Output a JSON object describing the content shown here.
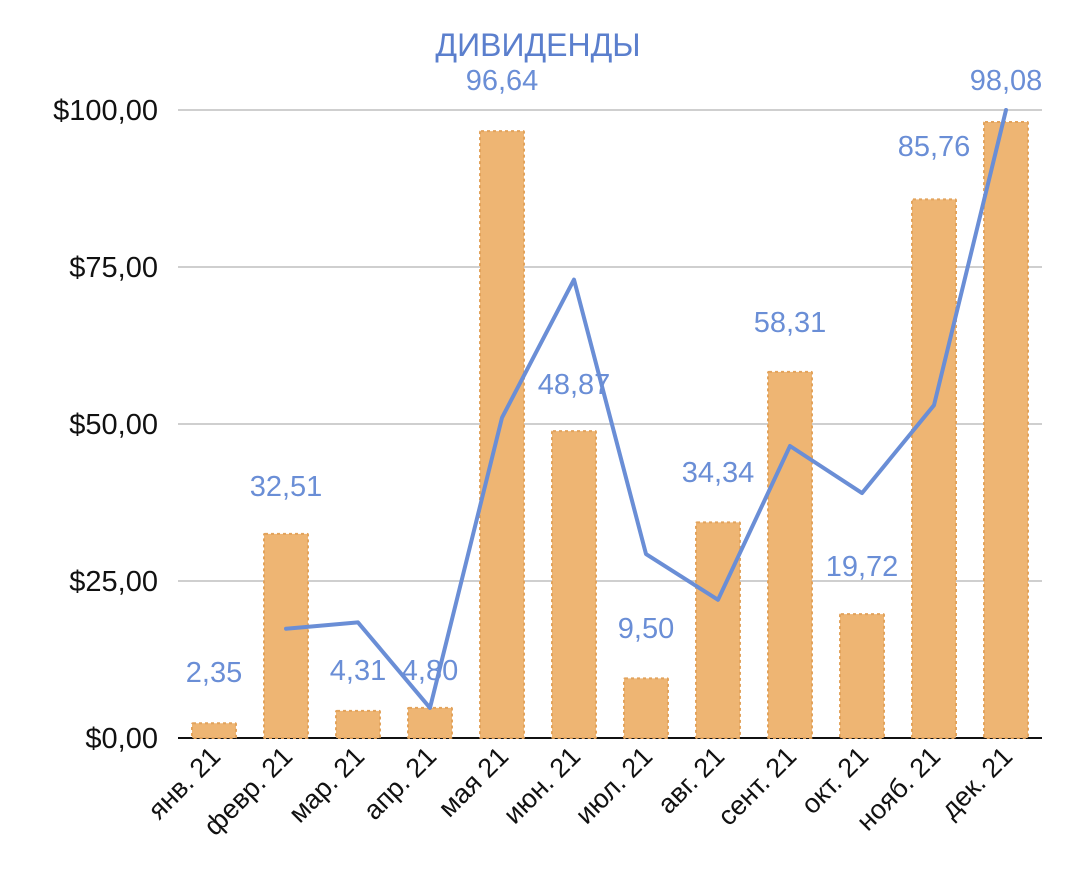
{
  "chart_data": {
    "type": "bar",
    "title": "ДИВИДЕНДЫ",
    "categories": [
      "янв. 21",
      "февр. 21",
      "мар. 21",
      "апр. 21",
      "мая 21",
      "июн. 21",
      "июл. 21",
      "авг. 21",
      "сент. 21",
      "окт. 21",
      "нояб. 21",
      "дек. 21"
    ],
    "series": [
      {
        "type": "bar",
        "values": [
          2.35,
          32.51,
          4.31,
          4.8,
          96.64,
          48.87,
          9.5,
          34.34,
          58.31,
          19.72,
          85.76,
          98.08
        ],
        "data_labels": [
          "2,35",
          "32,51",
          "4,31",
          "4,80",
          "96,64",
          "48,87",
          "9,50",
          "34,34",
          "58,31",
          "19,72",
          "85,76",
          "98,08"
        ],
        "color": "#eeb573"
      },
      {
        "type": "line",
        "x": [
          "февр. 21",
          "мар. 21",
          "апр. 21",
          "мая 21",
          "июн. 21",
          "июл. 21",
          "авг. 21",
          "сент. 21",
          "окт. 21",
          "нояб. 21",
          "дек. 21"
        ],
        "values": [
          17.4,
          18.4,
          4.8,
          51.0,
          73.0,
          29.3,
          22.0,
          46.5,
          39.0,
          53.0,
          100.0
        ],
        "color": "#6a8ed6"
      }
    ],
    "yticks": [
      "$0,00",
      "$25,00",
      "$50,00",
      "$75,00",
      "$100,00"
    ],
    "ylim": [
      0,
      100
    ],
    "grid": true,
    "legend": "none"
  }
}
